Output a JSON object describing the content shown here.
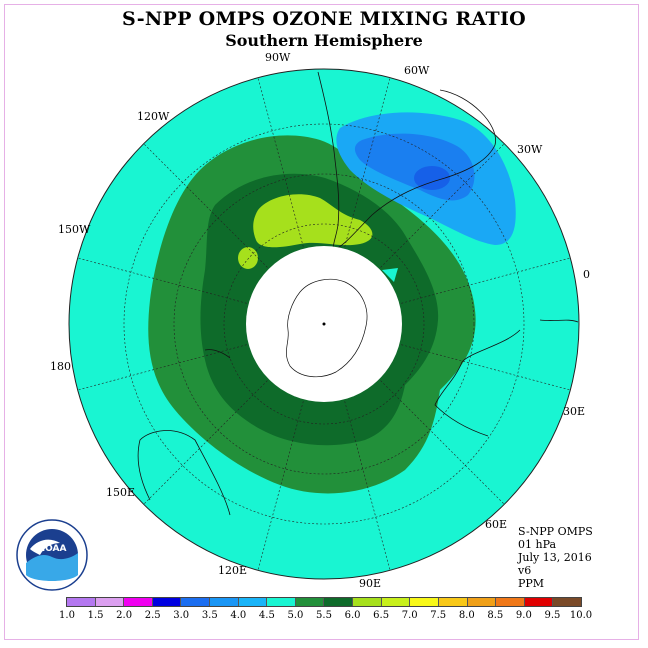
{
  "header": {
    "title": "S-NPP OMPS OZONE MIXING RATIO",
    "subtitle": "Southern Hemisphere"
  },
  "map": {
    "longitude_labels": [
      "90W",
      "60W",
      "30W",
      "0",
      "30E",
      "60E",
      "90E",
      "120E",
      "150E",
      "180",
      "150W",
      "120W"
    ],
    "colors": {
      "ocean_fill": "#19f5d2",
      "band_5_0_to_5_5": "#22903a",
      "band_5_5_to_6_0": "#0e6b2a",
      "band_6_0_to_6_5": "#a6e01c",
      "band_3_5_to_4_0": "#1aa8f5",
      "band_3_0_to_3_5": "#1a7ff0",
      "band_2_5_to_3_0": "#1660e8"
    }
  },
  "info_box": {
    "lines": [
      "S-NPP OMPS",
      "01 hPa",
      "July 13, 2016",
      "v6",
      "PPM"
    ]
  },
  "logo": {
    "text": "NOAA"
  },
  "legend": {
    "ticks": [
      "1.0",
      "1.5",
      "2.0",
      "2.5",
      "3.0",
      "3.5",
      "4.0",
      "4.5",
      "5.0",
      "5.5",
      "6.0",
      "6.5",
      "7.0",
      "7.5",
      "8.0",
      "8.5",
      "9.0",
      "9.5",
      "10.0"
    ],
    "colors": [
      "#b478f0",
      "#dca0f0",
      "#f000f0",
      "#0000e0",
      "#1c6ef0",
      "#1a96f5",
      "#1ab4f8",
      "#19f5d2",
      "#22903a",
      "#0e6b2a",
      "#a6e01c",
      "#c8f01c",
      "#f8f818",
      "#f8c818",
      "#f0a018",
      "#f07818",
      "#e00000",
      "#7a4a28"
    ]
  }
}
